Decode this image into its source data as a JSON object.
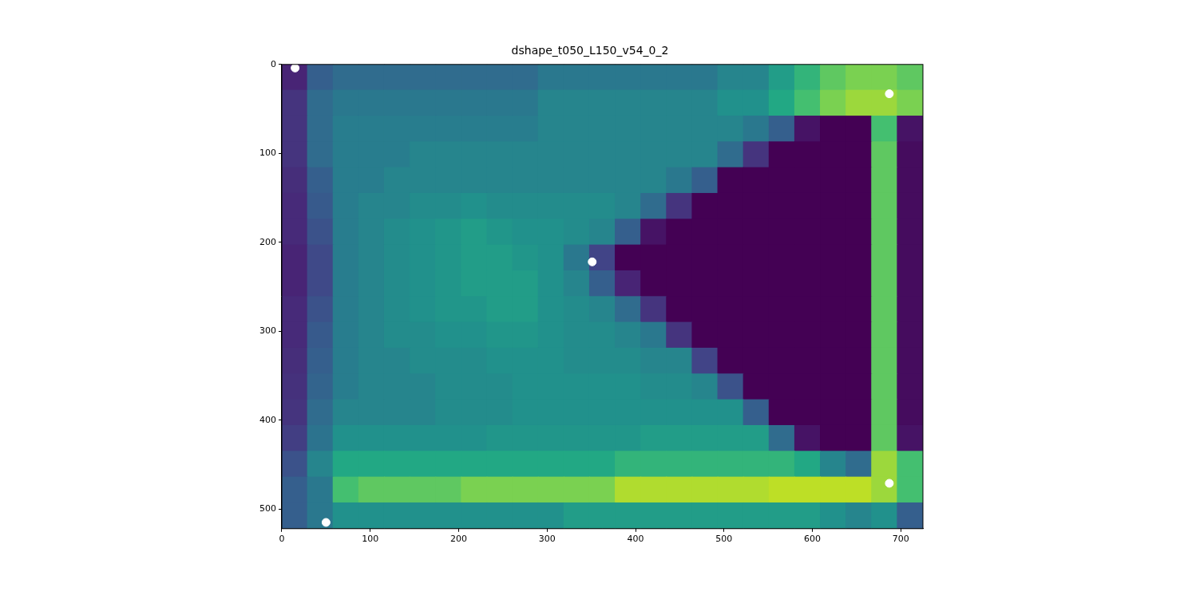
{
  "chart_data": {
    "type": "heatmap",
    "title": "dshape_t050_L150_v54_0_2",
    "xlim": [
      0,
      725
    ],
    "ylim": [
      522,
      0
    ],
    "xticks": [
      0,
      100,
      200,
      300,
      400,
      500,
      600,
      700
    ],
    "yticks": [
      0,
      100,
      200,
      300,
      400,
      500
    ],
    "grid": false,
    "zlim": [
      0,
      1
    ],
    "x_edges": [
      0,
      29,
      58,
      87,
      116,
      145,
      174,
      203,
      232,
      261,
      290,
      319,
      348,
      377,
      406,
      435,
      464,
      493,
      522,
      551,
      580,
      609,
      638,
      667,
      696,
      725
    ],
    "y_edges": [
      0,
      29,
      58,
      87,
      116,
      145,
      174,
      203,
      232,
      261,
      290,
      319,
      348,
      377,
      406,
      435,
      464,
      493,
      522
    ],
    "cells": [
      [
        0.1,
        0.3,
        0.35,
        0.35,
        0.35,
        0.35,
        0.35,
        0.35,
        0.35,
        0.35,
        0.4,
        0.4,
        0.4,
        0.4,
        0.4,
        0.4,
        0.4,
        0.45,
        0.45,
        0.55,
        0.65,
        0.75,
        0.8,
        0.8,
        0.75
      ],
      [
        0.15,
        0.35,
        0.4,
        0.4,
        0.4,
        0.4,
        0.4,
        0.4,
        0.4,
        0.4,
        0.45,
        0.45,
        0.45,
        0.45,
        0.45,
        0.45,
        0.45,
        0.5,
        0.5,
        0.6,
        0.7,
        0.8,
        0.85,
        0.85,
        0.8
      ],
      [
        0.15,
        0.35,
        0.42,
        0.42,
        0.42,
        0.42,
        0.42,
        0.42,
        0.42,
        0.42,
        0.45,
        0.45,
        0.45,
        0.45,
        0.45,
        0.45,
        0.45,
        0.45,
        0.4,
        0.3,
        0.05,
        0,
        0,
        0.7,
        0.05
      ],
      [
        0.15,
        0.35,
        0.42,
        0.42,
        0.42,
        0.45,
        0.45,
        0.45,
        0.45,
        0.45,
        0.45,
        0.45,
        0.45,
        0.45,
        0.45,
        0.45,
        0.45,
        0.35,
        0.15,
        0,
        0,
        0,
        0,
        0.75,
        0.03
      ],
      [
        0.13,
        0.3,
        0.42,
        0.42,
        0.45,
        0.45,
        0.45,
        0.45,
        0.45,
        0.45,
        0.45,
        0.45,
        0.45,
        0.45,
        0.45,
        0.4,
        0.3,
        0,
        0,
        0,
        0,
        0,
        0,
        0.75,
        0.03
      ],
      [
        0.12,
        0.28,
        0.42,
        0.45,
        0.45,
        0.48,
        0.48,
        0.5,
        0.48,
        0.48,
        0.48,
        0.48,
        0.48,
        0.45,
        0.35,
        0.15,
        0,
        0,
        0,
        0,
        0,
        0,
        0,
        0.75,
        0.03
      ],
      [
        0.12,
        0.25,
        0.42,
        0.45,
        0.48,
        0.5,
        0.52,
        0.55,
        0.52,
        0.5,
        0.5,
        0.48,
        0.45,
        0.3,
        0.05,
        0,
        0,
        0,
        0,
        0,
        0,
        0,
        0,
        0.75,
        0.03
      ],
      [
        0.1,
        0.22,
        0.42,
        0.45,
        0.48,
        0.5,
        0.52,
        0.55,
        0.55,
        0.52,
        0.5,
        0.4,
        0.2,
        0,
        0,
        0,
        0,
        0,
        0,
        0,
        0,
        0,
        0,
        0.75,
        0.03
      ],
      [
        0.1,
        0.22,
        0.42,
        0.45,
        0.48,
        0.5,
        0.52,
        0.55,
        0.55,
        0.55,
        0.5,
        0.45,
        0.3,
        0.1,
        0,
        0,
        0,
        0,
        0,
        0,
        0,
        0,
        0,
        0.75,
        0.03
      ],
      [
        0.12,
        0.25,
        0.42,
        0.45,
        0.48,
        0.5,
        0.52,
        0.52,
        0.55,
        0.55,
        0.5,
        0.48,
        0.45,
        0.35,
        0.15,
        0,
        0,
        0,
        0,
        0,
        0,
        0,
        0,
        0.75,
        0.03
      ],
      [
        0.12,
        0.28,
        0.42,
        0.45,
        0.48,
        0.48,
        0.5,
        0.5,
        0.52,
        0.52,
        0.5,
        0.48,
        0.48,
        0.45,
        0.4,
        0.15,
        0,
        0,
        0,
        0,
        0,
        0,
        0,
        0.75,
        0.03
      ],
      [
        0.13,
        0.3,
        0.42,
        0.45,
        0.45,
        0.48,
        0.48,
        0.48,
        0.5,
        0.5,
        0.5,
        0.48,
        0.48,
        0.48,
        0.45,
        0.45,
        0.2,
        0,
        0,
        0,
        0,
        0,
        0,
        0.75,
        0.03
      ],
      [
        0.14,
        0.32,
        0.42,
        0.45,
        0.45,
        0.45,
        0.48,
        0.48,
        0.48,
        0.5,
        0.5,
        0.5,
        0.5,
        0.5,
        0.48,
        0.48,
        0.45,
        0.25,
        0,
        0,
        0,
        0,
        0,
        0.75,
        0.03
      ],
      [
        0.15,
        0.35,
        0.45,
        0.45,
        0.45,
        0.45,
        0.48,
        0.48,
        0.48,
        0.5,
        0.5,
        0.5,
        0.5,
        0.5,
        0.5,
        0.5,
        0.5,
        0.5,
        0.3,
        0,
        0,
        0,
        0,
        0.75,
        0.03
      ],
      [
        0.18,
        0.38,
        0.5,
        0.5,
        0.5,
        0.5,
        0.5,
        0.5,
        0.52,
        0.52,
        0.52,
        0.52,
        0.52,
        0.52,
        0.55,
        0.55,
        0.55,
        0.55,
        0.55,
        0.35,
        0.05,
        0,
        0,
        0.75,
        0.05
      ],
      [
        0.25,
        0.45,
        0.6,
        0.6,
        0.6,
        0.6,
        0.6,
        0.6,
        0.6,
        0.6,
        0.6,
        0.6,
        0.6,
        0.65,
        0.65,
        0.65,
        0.65,
        0.65,
        0.65,
        0.65,
        0.6,
        0.45,
        0.35,
        0.85,
        0.7
      ],
      [
        0.3,
        0.4,
        0.7,
        0.75,
        0.75,
        0.75,
        0.75,
        0.8,
        0.8,
        0.8,
        0.8,
        0.8,
        0.8,
        0.88,
        0.88,
        0.88,
        0.88,
        0.88,
        0.88,
        0.9,
        0.9,
        0.9,
        0.9,
        0.85,
        0.7
      ],
      [
        0.3,
        0.4,
        0.5,
        0.5,
        0.5,
        0.5,
        0.5,
        0.5,
        0.5,
        0.5,
        0.5,
        0.55,
        0.55,
        0.55,
        0.55,
        0.55,
        0.55,
        0.55,
        0.55,
        0.55,
        0.55,
        0.5,
        0.45,
        0.5,
        0.3
      ]
    ],
    "points": {
      "x": [
        15,
        687,
        351,
        687,
        50
      ],
      "y": [
        4,
        33,
        222,
        471,
        515
      ],
      "color": "#ffffff",
      "marker": "circle"
    }
  }
}
